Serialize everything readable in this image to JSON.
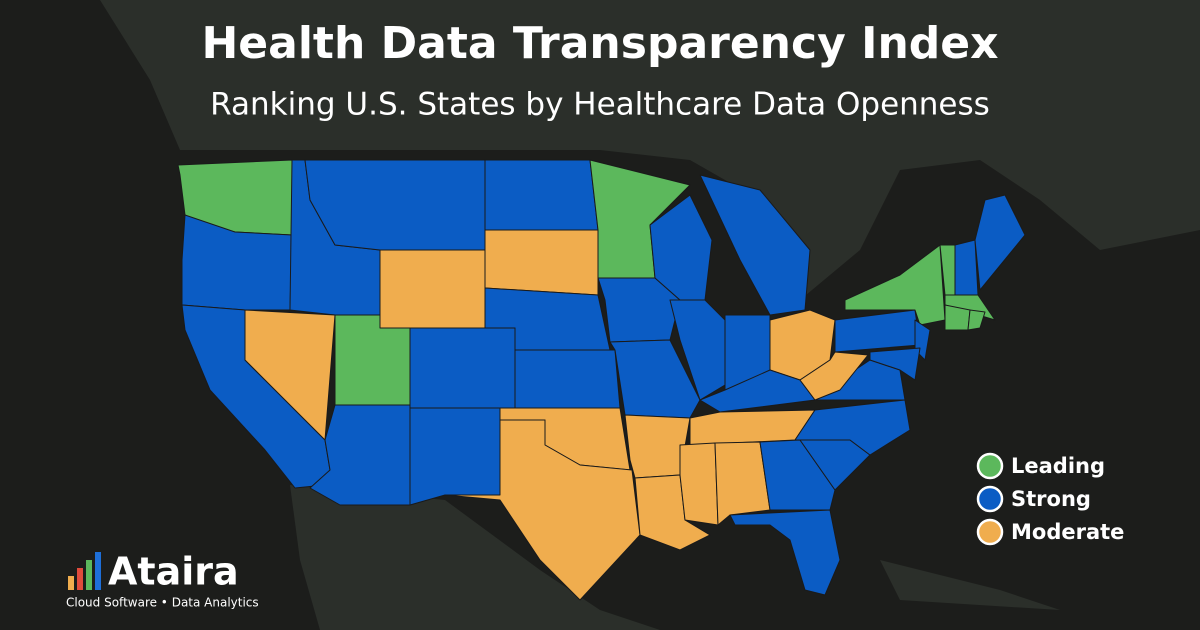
{
  "header": {
    "title": "Health Data Transparency Index",
    "subtitle": "Ranking U.S. States by Healthcare Data Openness"
  },
  "legend": [
    {
      "label": "Leading",
      "color": "#5cb85c"
    },
    {
      "label": "Strong",
      "color": "#0b5cc4"
    },
    {
      "label": "Moderate",
      "color": "#f0ad4e"
    }
  ],
  "map": {
    "regions": [
      0,
      1,
      1,
      1,
      2,
      1,
      2,
      1,
      0,
      1,
      1,
      1,
      1,
      2,
      0,
      1,
      1,
      1,
      1,
      2,
      2,
      1,
      2,
      2,
      1,
      1,
      2,
      1,
      2,
      2,
      2,
      1,
      1,
      1,
      1,
      1,
      2,
      1,
      0,
      1,
      1,
      0,
      1,
      1,
      0,
      0,
      0
    ]
  },
  "logo": {
    "name": "Ataira",
    "tagline": "Cloud Software • Data Analytics"
  }
}
